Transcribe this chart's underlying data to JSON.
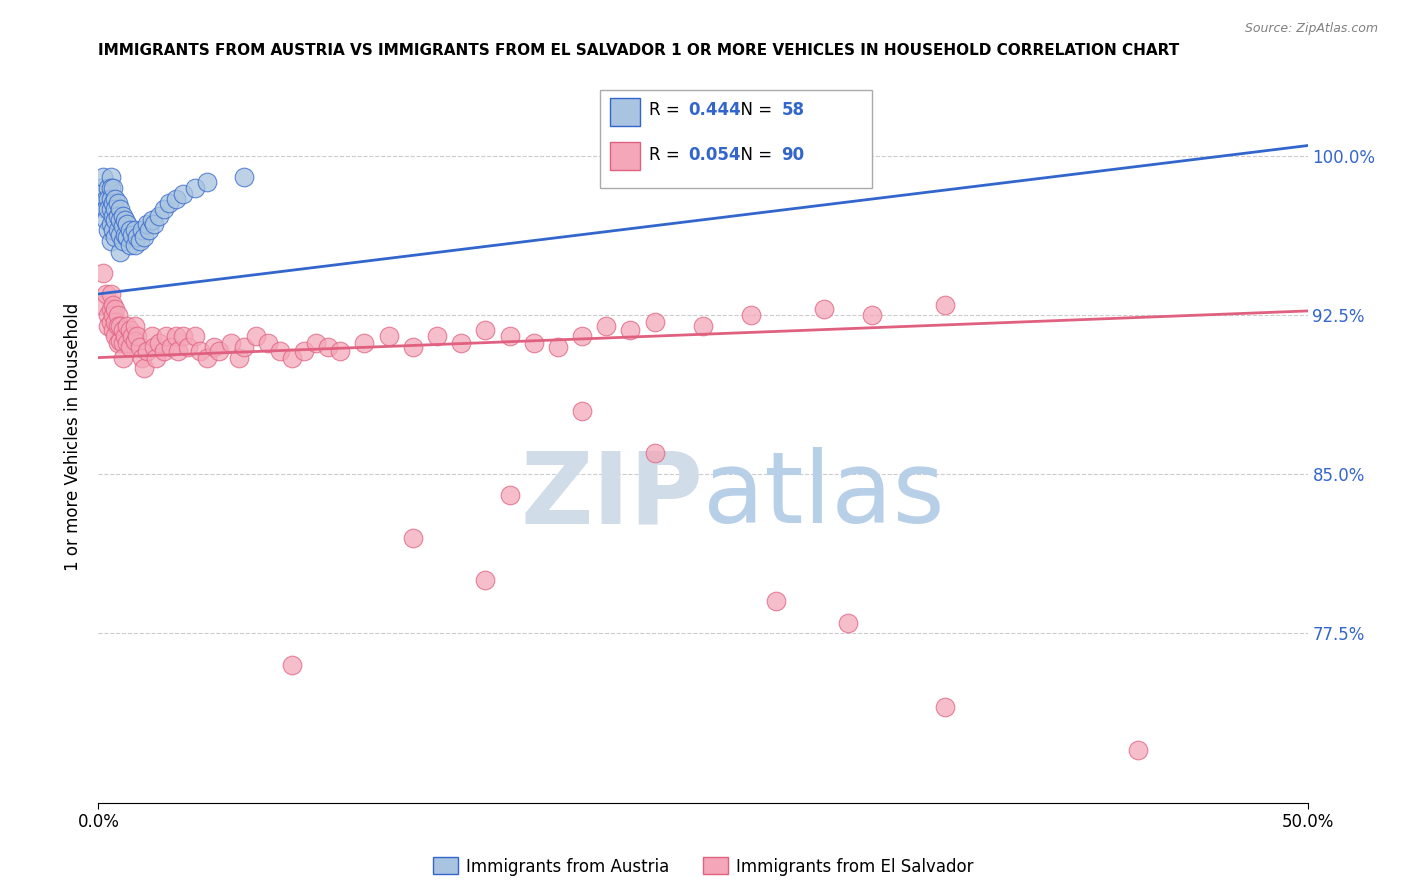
{
  "title": "IMMIGRANTS FROM AUSTRIA VS IMMIGRANTS FROM EL SALVADOR 1 OR MORE VEHICLES IN HOUSEHOLD CORRELATION CHART",
  "source": "Source: ZipAtlas.com",
  "ylabel": "1 or more Vehicles in Household",
  "y_tick_labels": [
    "77.5%",
    "85.0%",
    "92.5%",
    "100.0%"
  ],
  "y_tick_values": [
    0.775,
    0.85,
    0.925,
    1.0
  ],
  "xlim": [
    0.0,
    0.5
  ],
  "ylim": [
    0.695,
    1.04
  ],
  "legend_label_1": "Immigrants from Austria",
  "legend_label_2": "Immigrants from El Salvador",
  "R_austria": 0.444,
  "N_austria": 58,
  "R_elsalvador": 0.054,
  "N_elsalvador": 90,
  "color_austria": "#a8c4e0",
  "color_elsalvador": "#f4a7b9",
  "color_austria_line": "#3366cc",
  "color_elsalvador_line": "#e06080",
  "color_blue": "#3366cc",
  "background_color": "#ffffff",
  "grid_color": "#cccccc",
  "watermark_color": "#d0dce8",
  "austria_x": [
    0.001,
    0.002,
    0.003,
    0.003,
    0.003,
    0.004,
    0.004,
    0.004,
    0.004,
    0.005,
    0.005,
    0.005,
    0.005,
    0.005,
    0.005,
    0.006,
    0.006,
    0.006,
    0.006,
    0.007,
    0.007,
    0.007,
    0.007,
    0.008,
    0.008,
    0.008,
    0.009,
    0.009,
    0.009,
    0.009,
    0.01,
    0.01,
    0.01,
    0.011,
    0.011,
    0.012,
    0.012,
    0.013,
    0.013,
    0.014,
    0.015,
    0.015,
    0.016,
    0.017,
    0.018,
    0.019,
    0.02,
    0.021,
    0.022,
    0.023,
    0.025,
    0.027,
    0.029,
    0.032,
    0.035,
    0.04,
    0.045,
    0.06
  ],
  "austria_y": [
    0.985,
    0.99,
    0.98,
    0.975,
    0.97,
    0.985,
    0.98,
    0.975,
    0.965,
    0.99,
    0.985,
    0.98,
    0.975,
    0.968,
    0.96,
    0.985,
    0.978,
    0.972,
    0.965,
    0.98,
    0.975,
    0.97,
    0.962,
    0.978,
    0.972,
    0.965,
    0.975,
    0.97,
    0.963,
    0.955,
    0.972,
    0.967,
    0.96,
    0.97,
    0.963,
    0.968,
    0.962,
    0.965,
    0.958,
    0.963,
    0.965,
    0.958,
    0.962,
    0.96,
    0.965,
    0.962,
    0.968,
    0.965,
    0.97,
    0.968,
    0.972,
    0.975,
    0.978,
    0.98,
    0.982,
    0.985,
    0.988,
    0.99
  ],
  "elsalvador_x": [
    0.001,
    0.002,
    0.003,
    0.004,
    0.004,
    0.005,
    0.005,
    0.005,
    0.006,
    0.006,
    0.006,
    0.007,
    0.007,
    0.007,
    0.008,
    0.008,
    0.008,
    0.009,
    0.009,
    0.01,
    0.01,
    0.01,
    0.011,
    0.012,
    0.012,
    0.013,
    0.013,
    0.014,
    0.015,
    0.015,
    0.016,
    0.017,
    0.018,
    0.019,
    0.02,
    0.022,
    0.023,
    0.024,
    0.025,
    0.027,
    0.028,
    0.03,
    0.032,
    0.033,
    0.035,
    0.037,
    0.04,
    0.042,
    0.045,
    0.048,
    0.05,
    0.055,
    0.058,
    0.06,
    0.065,
    0.07,
    0.075,
    0.08,
    0.085,
    0.09,
    0.095,
    0.1,
    0.11,
    0.12,
    0.13,
    0.14,
    0.15,
    0.16,
    0.17,
    0.18,
    0.19,
    0.2,
    0.21,
    0.22,
    0.23,
    0.25,
    0.27,
    0.3,
    0.32,
    0.35,
    0.17,
    0.2,
    0.23,
    0.13,
    0.16,
    0.28,
    0.31,
    0.08,
    0.35,
    0.43
  ],
  "elsalvador_y": [
    0.93,
    0.945,
    0.935,
    0.925,
    0.92,
    0.935,
    0.928,
    0.922,
    0.93,
    0.925,
    0.918,
    0.928,
    0.922,
    0.915,
    0.925,
    0.92,
    0.912,
    0.92,
    0.913,
    0.918,
    0.912,
    0.905,
    0.915,
    0.92,
    0.912,
    0.918,
    0.91,
    0.915,
    0.92,
    0.913,
    0.915,
    0.91,
    0.905,
    0.9,
    0.908,
    0.915,
    0.91,
    0.905,
    0.912,
    0.908,
    0.915,
    0.91,
    0.915,
    0.908,
    0.915,
    0.91,
    0.915,
    0.908,
    0.905,
    0.91,
    0.908,
    0.912,
    0.905,
    0.91,
    0.915,
    0.912,
    0.908,
    0.905,
    0.908,
    0.912,
    0.91,
    0.908,
    0.912,
    0.915,
    0.91,
    0.915,
    0.912,
    0.918,
    0.915,
    0.912,
    0.91,
    0.915,
    0.92,
    0.918,
    0.922,
    0.92,
    0.925,
    0.928,
    0.925,
    0.93,
    0.84,
    0.88,
    0.86,
    0.82,
    0.8,
    0.79,
    0.78,
    0.76,
    0.74,
    0.72
  ],
  "austria_line_x": [
    0.0,
    0.5
  ],
  "austria_line_y": [
    0.935,
    1.005
  ],
  "elsalvador_line_x": [
    0.0,
    0.5
  ],
  "elsalvador_line_y": [
    0.905,
    0.927
  ]
}
